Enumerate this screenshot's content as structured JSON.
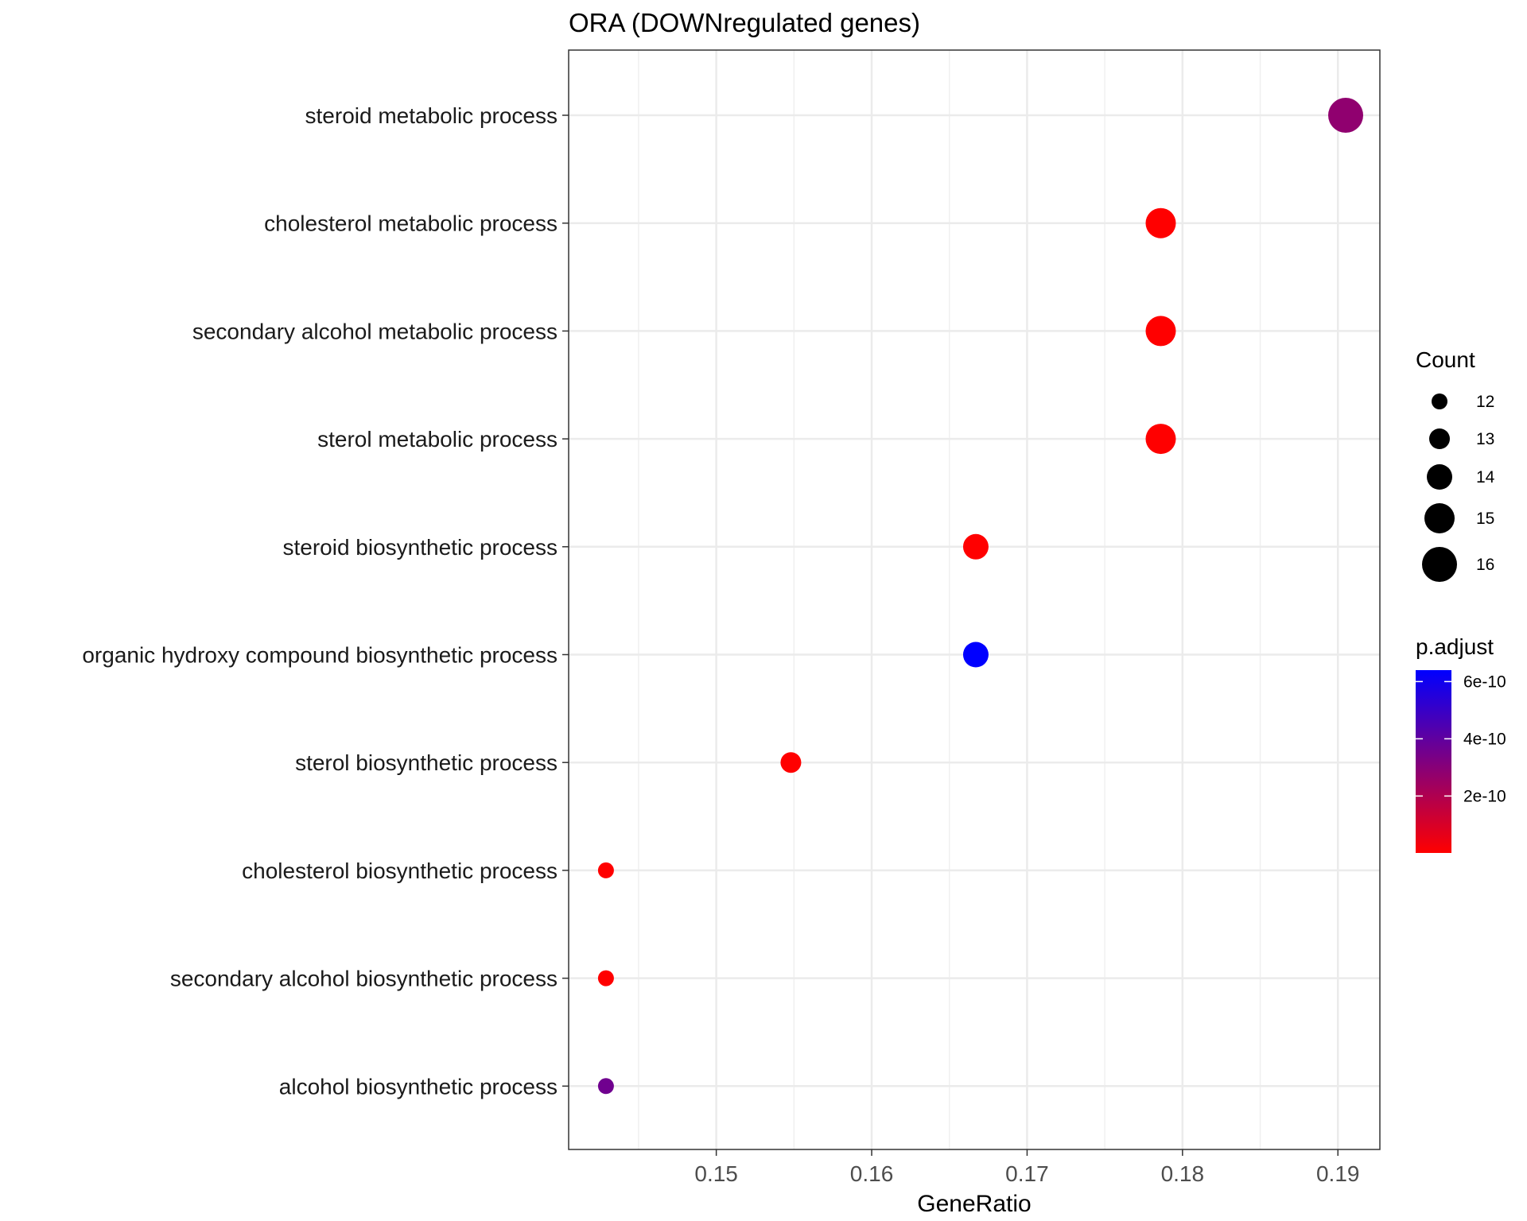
{
  "chart_data": {
    "type": "scatter",
    "title": "ORA (DOWNregulated genes)",
    "xlabel": "GeneRatio",
    "ylabel": "",
    "xlim": [
      0.1405,
      0.1927
    ],
    "x_ticks": [
      0.15,
      0.16,
      0.17,
      0.18,
      0.19
    ],
    "x_tick_labels": [
      "0.15",
      "0.16",
      "0.17",
      "0.18",
      "0.19"
    ],
    "grid": true,
    "legend_position": "right",
    "categories": [
      "steroid metabolic process",
      "cholesterol metabolic process",
      "secondary alcohol metabolic process",
      "sterol metabolic process",
      "steroid biosynthetic process",
      "organic hydroxy compound biosynthetic process",
      "sterol biosynthetic process",
      "cholesterol biosynthetic process",
      "secondary alcohol biosynthetic process",
      "alcohol biosynthetic process"
    ],
    "points": [
      {
        "category": "steroid metabolic process",
        "gene_ratio": 0.1905,
        "count": 16,
        "p_adjust": 2.8e-10
      },
      {
        "category": "cholesterol metabolic process",
        "gene_ratio": 0.1786,
        "count": 15,
        "p_adjust": 1e-12
      },
      {
        "category": "secondary alcohol metabolic process",
        "gene_ratio": 0.1786,
        "count": 15,
        "p_adjust": 1e-12
      },
      {
        "category": "sterol metabolic process",
        "gene_ratio": 0.1786,
        "count": 15,
        "p_adjust": 1e-12
      },
      {
        "category": "steroid biosynthetic process",
        "gene_ratio": 0.1667,
        "count": 14,
        "p_adjust": 1e-12
      },
      {
        "category": "organic hydroxy compound biosynthetic process",
        "gene_ratio": 0.1667,
        "count": 14,
        "p_adjust": 6.4e-10
      },
      {
        "category": "sterol biosynthetic process",
        "gene_ratio": 0.1548,
        "count": 13,
        "p_adjust": 1e-12
      },
      {
        "category": "cholesterol biosynthetic process",
        "gene_ratio": 0.1429,
        "count": 12,
        "p_adjust": 1e-12
      },
      {
        "category": "secondary alcohol biosynthetic process",
        "gene_ratio": 0.1429,
        "count": 12,
        "p_adjust": 1e-12
      },
      {
        "category": "alcohol biosynthetic process",
        "gene_ratio": 0.1429,
        "count": 12,
        "p_adjust": 3.6e-10
      }
    ],
    "size_legend": {
      "title": "Count",
      "values": [
        12,
        13,
        14,
        15,
        16
      ],
      "labels": [
        "12",
        "13",
        "14",
        "15",
        "16"
      ]
    },
    "color_legend": {
      "title": "p.adjust",
      "range": [
        1e-12,
        6.4e-10
      ],
      "low_color": "#FF0000",
      "high_color": "#0000FF",
      "ticks": [
        2e-10,
        4e-10,
        6e-10
      ],
      "tick_labels": [
        "2e-10",
        "4e-10",
        "6e-10"
      ]
    }
  }
}
